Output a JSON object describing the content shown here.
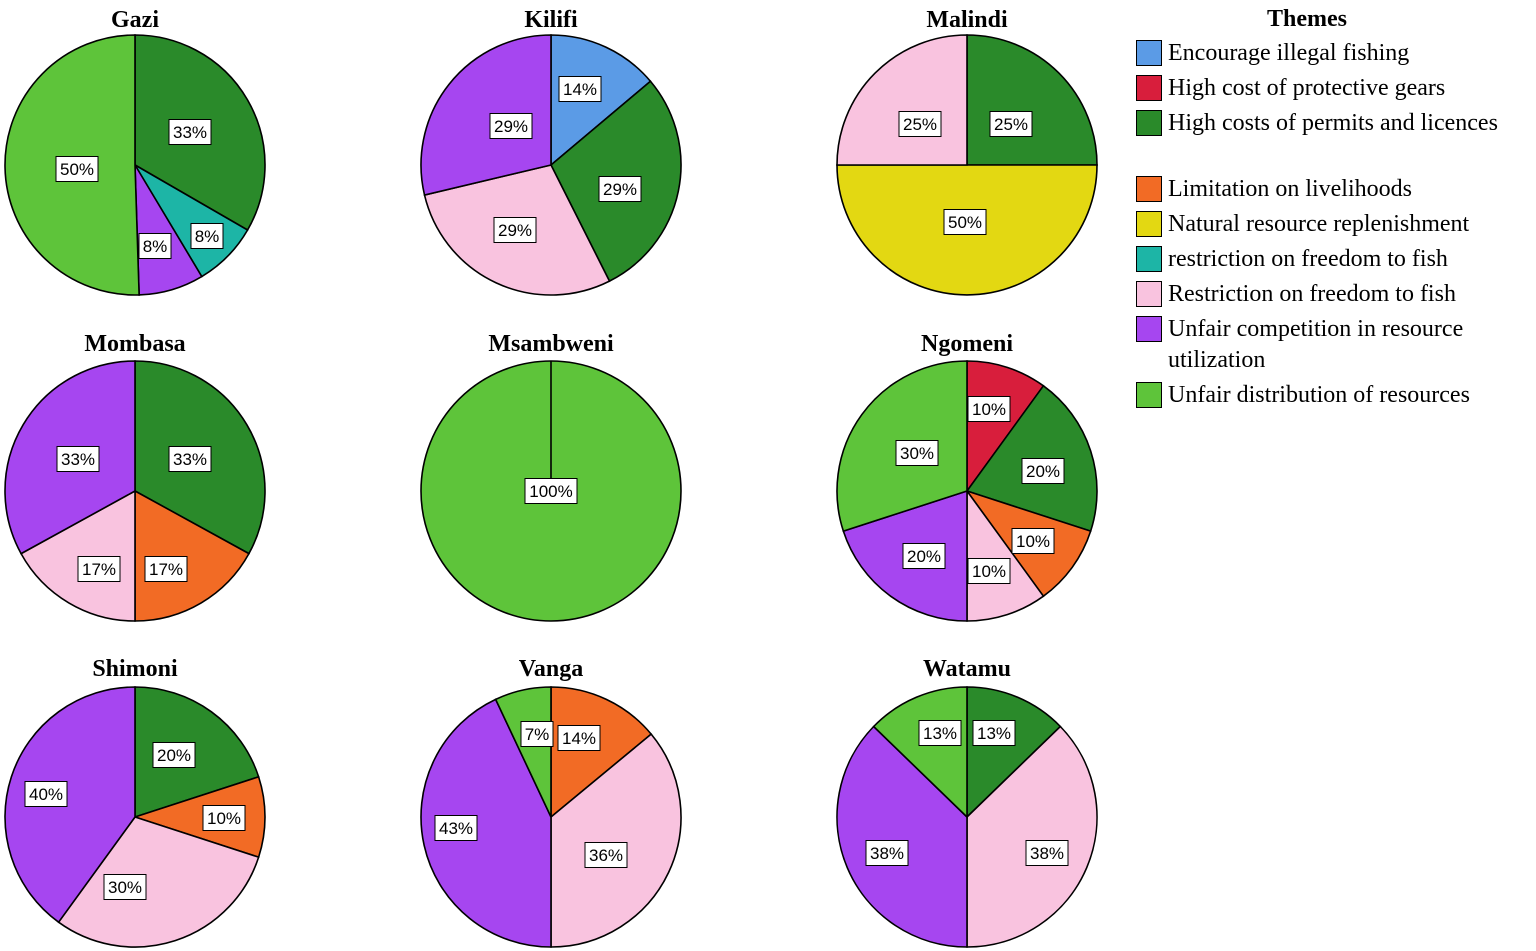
{
  "legend": {
    "title": "Themes",
    "items": [
      {
        "key": "encourage_illegal",
        "label": "Encourage illegal fishing",
        "color": "#5b9be6"
      },
      {
        "key": "protective_gears",
        "label": "High cost of protective gears",
        "color": "#d81e3c"
      },
      {
        "key": "permits",
        "label": "High costs of permits and licences",
        "color": "#2a8a2a"
      },
      {
        "key": "livelihoods",
        "label": "Limitation on livelihoods",
        "color": "#f26b25"
      },
      {
        "key": "replenishment",
        "label": "Natural resource replenishment",
        "color": "#e3d812"
      },
      {
        "key": "restriction_lower",
        "label": "restriction on freedom to fish",
        "color": "#1db5a6"
      },
      {
        "key": "restriction_upper",
        "label": "Restriction on freedom to fish",
        "color": "#f9c3df"
      },
      {
        "key": "unfair_competition",
        "label": "Unfair competition in resource utilization",
        "color": "#a646f0"
      },
      {
        "key": "unfair_distribution",
        "label": "Unfair distribution of resources",
        "color": "#5ec43a"
      }
    ]
  },
  "chart_data": [
    {
      "type": "pie",
      "title": "Gazi",
      "slices": [
        {
          "theme": "permits",
          "value": 33,
          "label": "33%"
        },
        {
          "theme": "restriction_lower",
          "value": 8,
          "label": "8%"
        },
        {
          "theme": "unfair_competition",
          "value": 8,
          "label": "8%"
        },
        {
          "theme": "unfair_distribution",
          "value": 50,
          "label": "50%"
        }
      ]
    },
    {
      "type": "pie",
      "title": "Kilifi",
      "slices": [
        {
          "theme": "encourage_illegal",
          "value": 14,
          "label": "14%"
        },
        {
          "theme": "permits",
          "value": 29,
          "label": "29%"
        },
        {
          "theme": "restriction_upper",
          "value": 29,
          "label": "29%"
        },
        {
          "theme": "unfair_competition",
          "value": 29,
          "label": "29%"
        }
      ]
    },
    {
      "type": "pie",
      "title": "Malindi",
      "slices": [
        {
          "theme": "permits",
          "value": 25,
          "label": "25%"
        },
        {
          "theme": "replenishment",
          "value": 50,
          "label": "50%"
        },
        {
          "theme": "restriction_upper",
          "value": 25,
          "label": "25%"
        }
      ]
    },
    {
      "type": "pie",
      "title": "Mombasa",
      "slices": [
        {
          "theme": "permits",
          "value": 33,
          "label": "33%"
        },
        {
          "theme": "livelihoods",
          "value": 17,
          "label": "17%"
        },
        {
          "theme": "restriction_upper",
          "value": 17,
          "label": "17%"
        },
        {
          "theme": "unfair_competition",
          "value": 33,
          "label": "33%"
        }
      ]
    },
    {
      "type": "pie",
      "title": "Msambweni",
      "slices": [
        {
          "theme": "unfair_distribution",
          "value": 100,
          "label": "100%"
        }
      ]
    },
    {
      "type": "pie",
      "title": "Ngomeni",
      "slices": [
        {
          "theme": "protective_gears",
          "value": 10,
          "label": "10%"
        },
        {
          "theme": "permits",
          "value": 20,
          "label": "20%"
        },
        {
          "theme": "livelihoods",
          "value": 10,
          "label": "10%"
        },
        {
          "theme": "restriction_upper",
          "value": 10,
          "label": "10%"
        },
        {
          "theme": "unfair_competition",
          "value": 20,
          "label": "20%"
        },
        {
          "theme": "unfair_distribution",
          "value": 30,
          "label": "30%"
        }
      ]
    },
    {
      "type": "pie",
      "title": "Shimoni",
      "slices": [
        {
          "theme": "permits",
          "value": 20,
          "label": "20%"
        },
        {
          "theme": "livelihoods",
          "value": 10,
          "label": "10%"
        },
        {
          "theme": "restriction_upper",
          "value": 30,
          "label": "30%"
        },
        {
          "theme": "unfair_competition",
          "value": 40,
          "label": "40%"
        }
      ]
    },
    {
      "type": "pie",
      "title": "Vanga",
      "slices": [
        {
          "theme": "livelihoods",
          "value": 14,
          "label": "14%"
        },
        {
          "theme": "restriction_upper",
          "value": 36,
          "label": "36%"
        },
        {
          "theme": "unfair_competition",
          "value": 43,
          "label": "43%"
        },
        {
          "theme": "unfair_distribution",
          "value": 7,
          "label": "7%"
        }
      ]
    },
    {
      "type": "pie",
      "title": "Watamu",
      "slices": [
        {
          "theme": "permits",
          "value": 13,
          "label": "13%"
        },
        {
          "theme": "restriction_upper",
          "value": 38,
          "label": "38%"
        },
        {
          "theme": "unfair_competition",
          "value": 38,
          "label": "38%"
        },
        {
          "theme": "unfair_distribution",
          "value": 13,
          "label": "13%"
        }
      ]
    }
  ]
}
